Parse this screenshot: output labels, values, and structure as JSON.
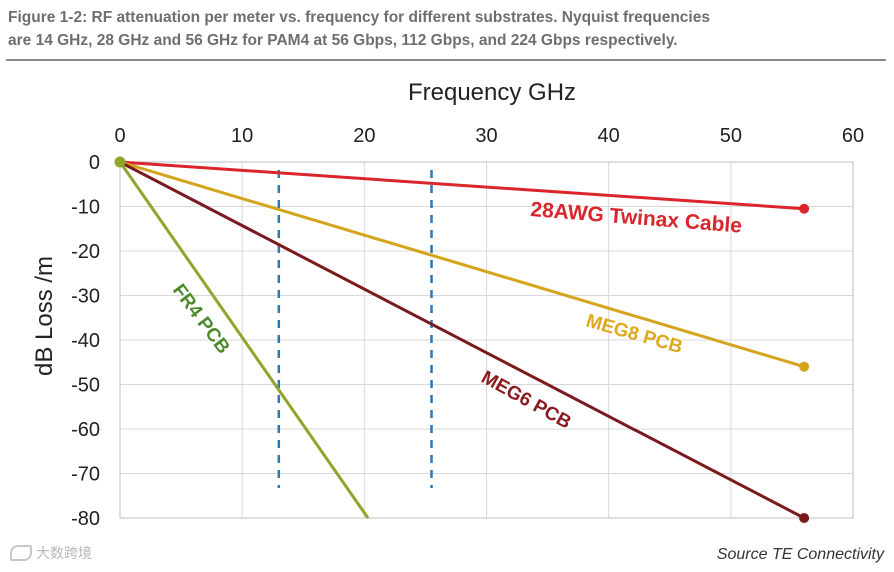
{
  "caption": "Figure 1-2: RF attenuation per meter vs. frequency for different substrates. Nyquist frequencies\nare 14 GHz, 28 GHz and 56 GHz for PAM4 at 56 Gbps, 112 Gbps, and 224 Gbps respectively.",
  "source": "Source TE Connectivity",
  "watermark": "大数跨境",
  "chart_data": {
    "type": "line",
    "xlabel": "Frequency GHz",
    "ylabel": "dB Loss /m",
    "xlim": [
      0,
      60
    ],
    "ylim": [
      -80,
      0
    ],
    "x_ticks": [
      "0",
      "10",
      "20",
      "30",
      "40",
      "50",
      "60"
    ],
    "y_ticks": [
      "0",
      "-10",
      "-20",
      "-30",
      "-40",
      "-50",
      "-60",
      "-70",
      "-80"
    ],
    "grid": true,
    "x_axis_position": "top",
    "vertical_markers": [
      13,
      25.5
    ],
    "series": [
      {
        "name": "28AWG Twinax Cable",
        "color": "#d9252b",
        "x": [
          0,
          56
        ],
        "y": [
          0,
          -10.5
        ],
        "end_marker": true
      },
      {
        "name": "MEG8 PCB",
        "color": "#d4a41c",
        "x": [
          0,
          56
        ],
        "y": [
          0,
          -46
        ],
        "end_marker": true
      },
      {
        "name": "MEG6 PCB",
        "color": "#7b1a1e",
        "x": [
          0,
          56
        ],
        "y": [
          0,
          -80
        ],
        "end_marker": true
      },
      {
        "name": "FR4 PCB",
        "color": "#8fa52c",
        "x": [
          0,
          20.3
        ],
        "y": [
          0,
          -80
        ],
        "end_marker": false
      }
    ],
    "label_colors": {
      "28AWG Twinax Cable": "#d9252b",
      "MEG8 PCB": "#e0a81e",
      "MEG6 PCB": "#8b1a1e",
      "FR4 PCB": "#4d8a2c"
    },
    "start_marker_color": "#8fa52c"
  }
}
